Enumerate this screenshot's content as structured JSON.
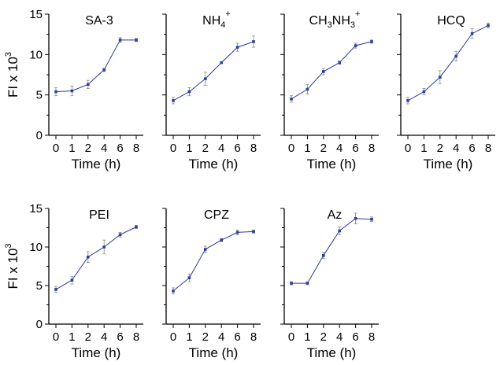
{
  "chart_data": {
    "type": "line",
    "layout": "grid 2x4 (7 panels, last cell empty)",
    "ylabel": "FI x 10",
    "ylabel_superscript": "3",
    "xlabel": "Time (h)",
    "x": [
      0,
      1,
      2,
      4,
      6,
      8
    ],
    "xticks": [
      "0",
      "1",
      "2",
      "4",
      "6",
      "8"
    ],
    "yticks": [
      "0",
      "5",
      "10",
      "15"
    ],
    "ylim": [
      0,
      15
    ],
    "grid": false,
    "colors": {
      "series": "#2b3a9e",
      "error_bars": "#8a8a8a"
    },
    "panels": [
      {
        "title": "SA-3",
        "values": [
          5.4,
          5.5,
          6.3,
          8.1,
          11.8,
          11.8
        ],
        "errors": [
          0.5,
          0.6,
          0.5,
          0.2,
          0.3,
          0.2
        ]
      },
      {
        "title": "NH4+",
        "title_parts": [
          [
            "NH",
            ""
          ],
          [
            "4",
            "sub"
          ],
          [
            "+",
            "sup"
          ]
        ],
        "values": [
          4.3,
          5.4,
          7.0,
          9.0,
          10.9,
          11.6
        ],
        "errors": [
          0.4,
          0.5,
          0.8,
          0.1,
          0.5,
          0.7
        ]
      },
      {
        "title": "CH3NH3+",
        "title_parts": [
          [
            "CH",
            ""
          ],
          [
            "3",
            "sub"
          ],
          [
            "NH",
            ""
          ],
          [
            "3",
            "sub"
          ],
          [
            "+",
            "sup"
          ]
        ],
        "values": [
          4.5,
          5.7,
          7.9,
          9.0,
          11.1,
          11.6
        ],
        "errors": [
          0.4,
          0.6,
          0.4,
          0.2,
          0.3,
          0.2
        ]
      },
      {
        "title": "HCQ",
        "values": [
          4.3,
          5.4,
          7.2,
          9.8,
          12.6,
          13.6
        ],
        "errors": [
          0.4,
          0.4,
          0.8,
          0.6,
          0.6,
          0.3
        ]
      },
      {
        "title": "PEI",
        "values": [
          4.5,
          5.7,
          8.7,
          10.0,
          11.6,
          12.6
        ],
        "errors": [
          0.4,
          0.5,
          0.7,
          0.9,
          0.3,
          0.2
        ]
      },
      {
        "title": "CPZ",
        "values": [
          4.3,
          6.0,
          9.7,
          10.9,
          11.9,
          12.0
        ],
        "errors": [
          0.4,
          0.5,
          0.4,
          0.2,
          0.3,
          0.2
        ]
      },
      {
        "title": "Az",
        "values": [
          5.3,
          5.3,
          8.9,
          12.1,
          13.7,
          13.6
        ],
        "errors": [
          0.2,
          0.2,
          0.4,
          0.5,
          0.7,
          0.3
        ]
      }
    ]
  }
}
